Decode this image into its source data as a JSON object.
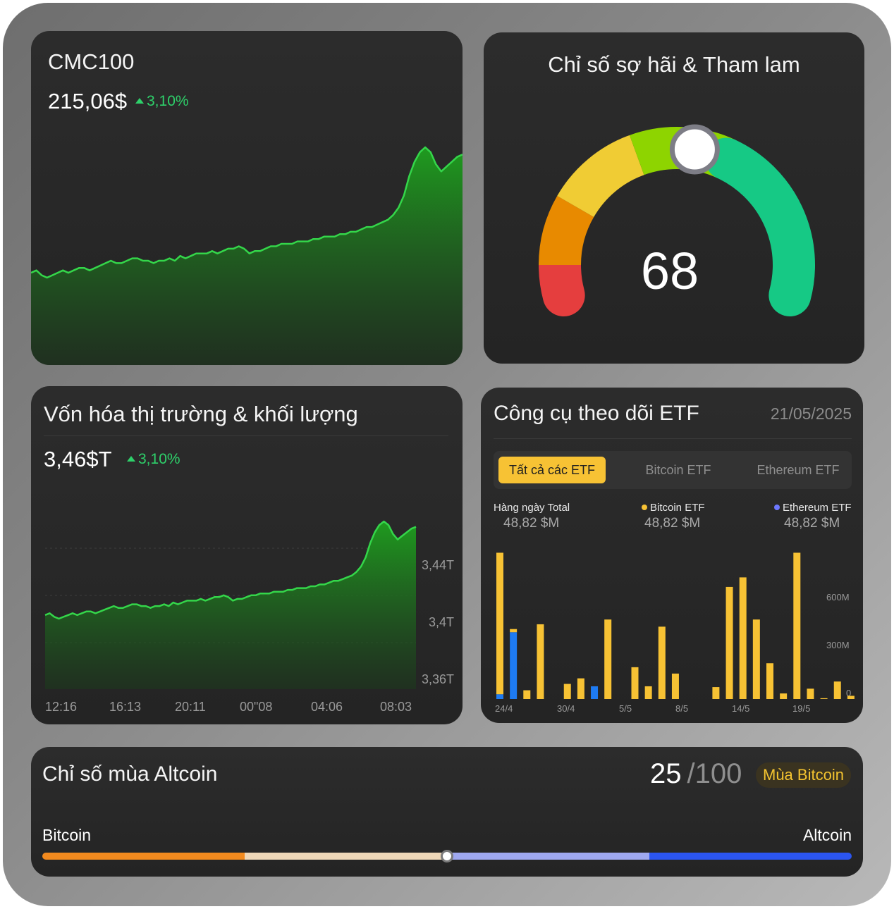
{
  "colors": {
    "up": "#2ed06a",
    "line": "#34d64a",
    "bitcoin": "#f7c234",
    "ethereum": "#1e7bf2",
    "gauge": [
      "#e53e3e",
      "#e88a00",
      "#f0cc34",
      "#8ed400",
      "#16c985"
    ]
  },
  "cmc100": {
    "title": "CMC100",
    "value": "215,06$",
    "change": "3,10%",
    "series": [
      40,
      41,
      39,
      38,
      39,
      40,
      41,
      40,
      41,
      42,
      42,
      41,
      42,
      43,
      44,
      45,
      44,
      44,
      45,
      46,
      46,
      45,
      45,
      44,
      45,
      45,
      46,
      45,
      47,
      46,
      47,
      48,
      48,
      48,
      49,
      48,
      49,
      50,
      50,
      51,
      50,
      48,
      49,
      49,
      50,
      51,
      51,
      52,
      52,
      52,
      53,
      53,
      53,
      54,
      54,
      55,
      55,
      55,
      56,
      56,
      57,
      57,
      58,
      59,
      59,
      60,
      61,
      62,
      64,
      67,
      72,
      80,
      86,
      90,
      92,
      90,
      85,
      82,
      84,
      86,
      88,
      89
    ]
  },
  "fear_greed": {
    "title": "Chỉ số sợ hãi & Tham lam",
    "value": "68",
    "score": 68
  },
  "market_cap": {
    "title": "Vốn hóa thị trường & khối lượng",
    "value": "3,46$T",
    "change": "3,10%",
    "y_labels": [
      "3,44T",
      "3,4T",
      "3,36T"
    ],
    "x_labels": [
      "12:16",
      "16:13",
      "20:11",
      "00\"08",
      "04:06",
      "08:03"
    ],
    "series": [
      40,
      41,
      39,
      38,
      39,
      40,
      41,
      40,
      41,
      42,
      42,
      41,
      42,
      43,
      44,
      45,
      44,
      44,
      45,
      46,
      46,
      45,
      45,
      44,
      45,
      45,
      46,
      45,
      47,
      46,
      47,
      48,
      48,
      48,
      49,
      48,
      49,
      50,
      50,
      51,
      50,
      48,
      49,
      49,
      50,
      51,
      51,
      52,
      52,
      52,
      53,
      53,
      53,
      54,
      54,
      55,
      55,
      55,
      56,
      56,
      57,
      57,
      58,
      59,
      59,
      60,
      61,
      62,
      64,
      67,
      72,
      80,
      86,
      90,
      92,
      90,
      85,
      82,
      84,
      86,
      88,
      89
    ]
  },
  "etf": {
    "title": "Công cụ theo dõi ETF",
    "date": "21/05/2025",
    "tabs": [
      "Tất cả các ETF",
      "Bitcoin ETF",
      "Ethereum ETF"
    ],
    "active_tab": 0,
    "legend": [
      {
        "label": "Hàng ngày Total",
        "value": "48,82 $M"
      },
      {
        "label": "Bitcoin ETF",
        "value": "48,82 $M"
      },
      {
        "label": "Ethereum ETF",
        "value": "48,82 $M"
      }
    ],
    "y_labels": [
      "600M",
      "300M",
      "0"
    ]
  },
  "chart_data": {
    "type": "bar",
    "title": "Công cụ theo dõi ETF",
    "x_labels": [
      "24/4",
      "30/4",
      "5/5",
      "8/5",
      "14/5",
      "19/5"
    ],
    "ylim": [
      0,
      975
    ],
    "series": [
      {
        "name": "Bitcoin ETF",
        "values": [
          890,
          20,
          55,
          470,
          0,
          95,
          130,
          0,
          500,
          0,
          200,
          80,
          455,
          160,
          0,
          0,
          75,
          705,
          765,
          500,
          225,
          35,
          920,
          65,
          5,
          110,
          20,
          0,
          0,
          0,
          0,
          0,
          0,
          0,
          0,
          0
        ]
      },
      {
        "name": "Ethereum ETF",
        "values": [
          30,
          420,
          0,
          0,
          0,
          0,
          0,
          80,
          0,
          0,
          0,
          0,
          0,
          0,
          0,
          0,
          0,
          0,
          0,
          0,
          0,
          0,
          0,
          0,
          0,
          0,
          0,
          0,
          0,
          0,
          0,
          0,
          0,
          0,
          0,
          0
        ]
      }
    ]
  },
  "altcoin": {
    "title": "Chỉ số mùa Altcoin",
    "score": "25",
    "max": "/100",
    "badge": "Mùa Bitcoin",
    "left_label": "Bitcoin",
    "right_label": "Altcoin",
    "position_fraction": 0.5
  }
}
